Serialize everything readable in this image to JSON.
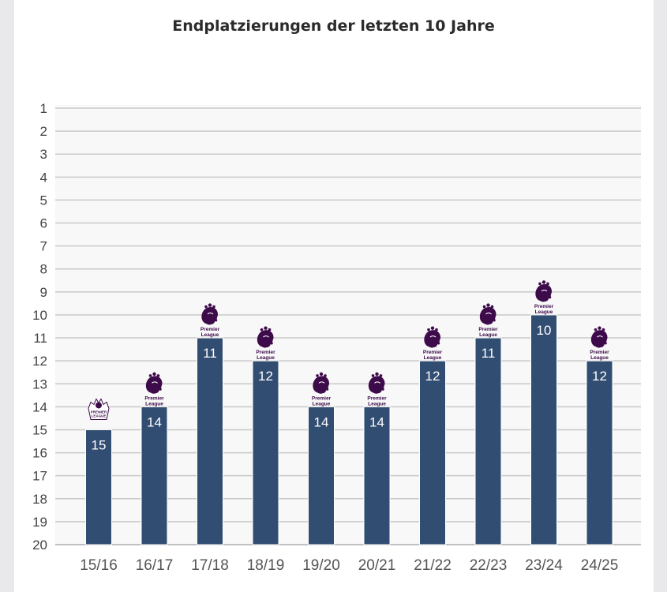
{
  "chart_data": {
    "type": "bar",
    "title": "Endplatzierungen der letzten 10 Jahre",
    "xlabel": "",
    "ylabel": "",
    "y_axis_inverted": true,
    "ylim": [
      1,
      20
    ],
    "yticks": [
      "1",
      "2",
      "3",
      "4",
      "5",
      "6",
      "7",
      "8",
      "9",
      "10",
      "11",
      "12",
      "13",
      "14",
      "15",
      "16",
      "17",
      "18",
      "19",
      "20"
    ],
    "categories": [
      "15/16",
      "16/17",
      "17/18",
      "18/19",
      "19/20",
      "20/21",
      "21/22",
      "22/23",
      "23/24",
      "24/25"
    ],
    "values": [
      15,
      14,
      11,
      12,
      14,
      14,
      12,
      11,
      10,
      12
    ],
    "league_badges": [
      "old-premier-league",
      "premier-league",
      "premier-league",
      "premier-league",
      "premier-league",
      "premier-league",
      "premier-league",
      "premier-league",
      "premier-league",
      "premier-league"
    ],
    "badge_text": {
      "line1": "Premier",
      "line2": "League",
      "old_line1": "PREMIER",
      "old_line2": "LEAGUE"
    },
    "colors": {
      "bar": "#314d72",
      "grid": "#c9c9c9",
      "plot_bg": "#f8f8f8",
      "badge": "#3d0a4a"
    }
  }
}
